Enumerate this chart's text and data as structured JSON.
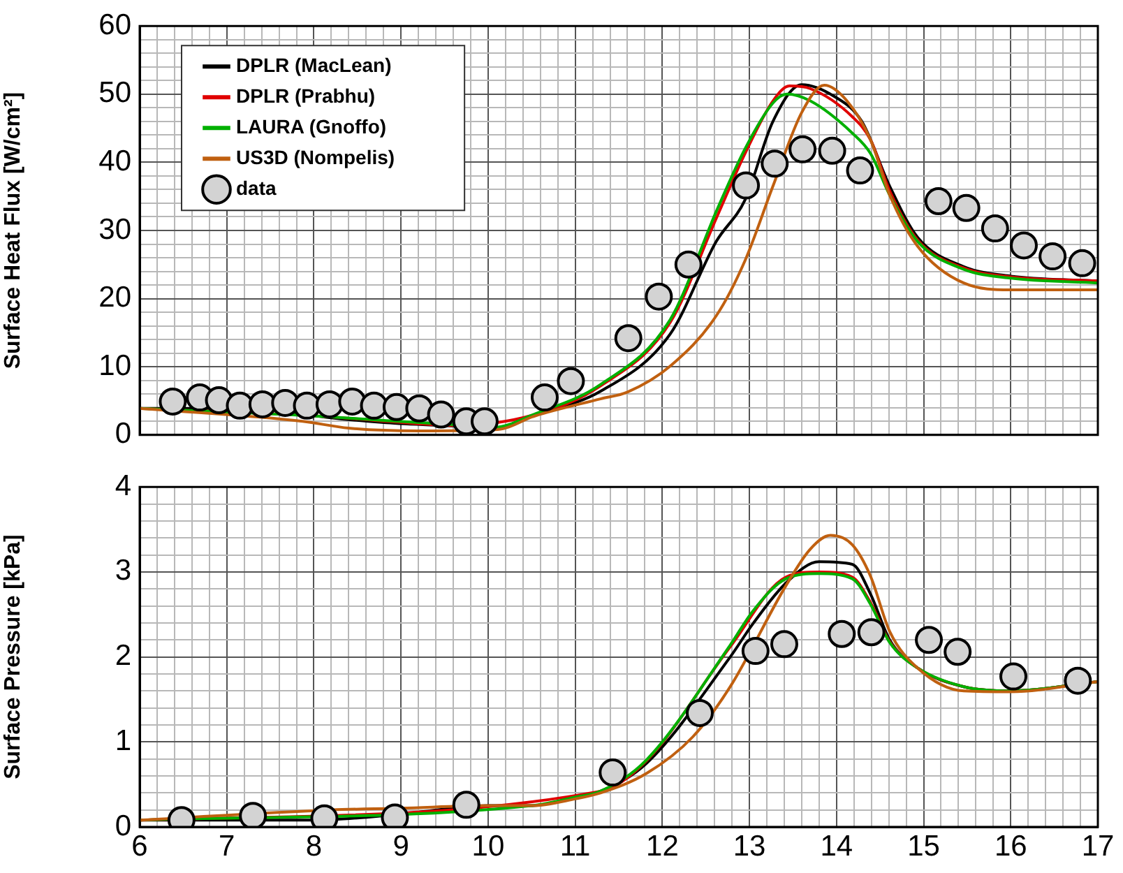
{
  "chart_data": [
    {
      "type": "line",
      "ylabel": "Surface Heat Flux [W/cm²]",
      "legend": "top left",
      "grid": true,
      "tick_labels": "y",
      "marker": "none",
      "xlim": [
        6,
        17
      ],
      "ylim": [
        0,
        60
      ],
      "xticks": [
        6,
        {
          "value": 6.2,
          "label": null
        },
        {
          "value": 6.4,
          "label": null
        },
        {
          "value": 6.6,
          "label": null
        },
        {
          "value": 6.8,
          "label": null
        },
        7,
        {
          "value": 7.2,
          "label": null
        },
        {
          "value": 7.4,
          "label": null
        },
        {
          "value": 7.6,
          "label": null
        },
        {
          "value": 7.8,
          "label": null
        },
        8,
        {
          "value": 8.2,
          "label": null
        },
        {
          "value": 8.4,
          "label": null
        },
        {
          "value": 8.6,
          "label": null
        },
        {
          "value": 8.8,
          "label": null
        },
        9,
        {
          "value": 9.2,
          "label": null
        },
        {
          "value": 9.4,
          "label": null
        },
        {
          "value": 9.6,
          "label": null
        },
        {
          "value": 9.8,
          "label": null
        },
        10,
        {
          "value": 10.2,
          "label": null
        },
        {
          "value": 10.4,
          "label": null
        },
        {
          "value": 10.6,
          "label": null
        },
        {
          "value": 10.8,
          "label": null
        },
        11,
        {
          "value": 11.2,
          "label": null
        },
        {
          "value": 11.4,
          "label": null
        },
        {
          "value": 11.6,
          "label": null
        },
        {
          "value": 11.8,
          "label": null
        },
        12,
        {
          "value": 12.2,
          "label": null
        },
        {
          "value": 12.4,
          "label": null
        },
        {
          "value": 12.6,
          "label": null
        },
        {
          "value": 12.8,
          "label": null
        },
        13,
        {
          "value": 13.2,
          "label": null
        },
        {
          "value": 13.4,
          "label": null
        },
        {
          "value": 13.6,
          "label": null
        },
        {
          "value": 13.8,
          "label": null
        },
        14,
        {
          "value": 14.2,
          "label": null
        },
        {
          "value": 14.4,
          "label": null
        },
        {
          "value": 14.6,
          "label": null
        },
        {
          "value": 14.8,
          "label": null
        },
        15,
        {
          "value": 15.2,
          "label": null
        },
        {
          "value": 15.4,
          "label": null
        },
        {
          "value": 15.6,
          "label": null
        },
        {
          "value": 15.8,
          "label": null
        },
        16,
        {
          "value": 16.2,
          "label": null
        },
        {
          "value": 16.4,
          "label": null
        },
        {
          "value": 16.6,
          "label": null
        },
        {
          "value": 16.8,
          "label": null
        },
        17
      ],
      "yticks": [
        0,
        {
          "value": 2,
          "label": null
        },
        {
          "value": 4,
          "label": null
        },
        {
          "value": 6,
          "label": null
        },
        {
          "value": 8,
          "label": null
        },
        10,
        {
          "value": 12,
          "label": null
        },
        {
          "value": 14,
          "label": null
        },
        {
          "value": 16,
          "label": null
        },
        {
          "value": 18,
          "label": null
        },
        20,
        {
          "value": 22,
          "label": null
        },
        {
          "value": 24,
          "label": null
        },
        {
          "value": 26,
          "label": null
        },
        {
          "value": 28,
          "label": null
        },
        30,
        {
          "value": 32,
          "label": null
        },
        {
          "value": 34,
          "label": null
        },
        {
          "value": 36,
          "label": null
        },
        {
          "value": 38,
          "label": null
        },
        40,
        {
          "value": 42,
          "label": null
        },
        {
          "value": 44,
          "label": null
        },
        {
          "value": 46,
          "label": null
        },
        {
          "value": 48,
          "label": null
        },
        50,
        {
          "value": 52,
          "label": null
        },
        {
          "value": 54,
          "label": null
        },
        {
          "value": 56,
          "label": null
        },
        {
          "value": 58,
          "label": null
        },
        60
      ],
      "series": [
        {
          "name": "DPLR (MacLean)",
          "type": "line",
          "color": "#000000",
          "x": [
            6,
            7,
            7.5,
            8.14,
            8.83,
            9.63,
            10.06,
            10.54,
            11.29,
            12.09,
            12.62,
            12.95,
            13.27,
            13.6,
            13.97,
            14.29,
            14.61,
            14.93,
            15.46,
            16,
            17
          ],
          "values": [
            3.9,
            3.9,
            3.7,
            2.6,
            1.8,
            1.3,
            1.0,
            3.0,
            6.4,
            14.8,
            28.4,
            34.5,
            46,
            51.4,
            49.7,
            46,
            36.5,
            29,
            24.7,
            23.3,
            22.6
          ]
        },
        {
          "name": "DPLR (Prabhu)",
          "type": "line",
          "color": "#e00000",
          "x": [
            6,
            8.14,
            8.83,
            9.63,
            10.54,
            11.29,
            12.09,
            12.62,
            12.95,
            13.27,
            13.46,
            13.7,
            14.18,
            14.39,
            14.61,
            14.93,
            15.46,
            16,
            17
          ],
          "values": [
            3.9,
            2.7,
            2.0,
            1.4,
            3.0,
            7.2,
            16.5,
            31.8,
            41.3,
            49,
            51.2,
            50.8,
            46.7,
            43.3,
            35.8,
            28.6,
            24.5,
            23.2,
            22.6
          ]
        },
        {
          "name": "LAURA (Gnoffo)",
          "type": "line",
          "color": "#00b000",
          "x": [
            6,
            8.14,
            8.83,
            9.63,
            10.06,
            10.54,
            11.29,
            12.09,
            12.62,
            12.95,
            13.27,
            13.43,
            13.7,
            14.18,
            14.39,
            14.61,
            14.93,
            15.46,
            16,
            17
          ],
          "values": [
            3.9,
            2.7,
            2.1,
            1.5,
            1.1,
            3.1,
            7.4,
            16.9,
            32.8,
            42,
            48.7,
            50,
            49,
            44.3,
            41.3,
            35.2,
            28.4,
            24.3,
            23,
            22.3
          ]
        },
        {
          "name": "US3D (Nompelis)",
          "type": "line",
          "color": "#c06010",
          "x": [
            6,
            7.87,
            8.4,
            9.2,
            10.11,
            10.54,
            11.29,
            11.6,
            12.09,
            12.62,
            12.95,
            13.27,
            13.6,
            13.86,
            14.12,
            14.39,
            14.61,
            14.93,
            15.46,
            16,
            17
          ],
          "values": [
            3.9,
            2.0,
            1.0,
            0.6,
            0.8,
            2.8,
            5.3,
            6.3,
            10.1,
            17.5,
            25.6,
            36.5,
            47.3,
            51.3,
            49,
            43.3,
            35.2,
            27.7,
            22.3,
            21.3,
            21.3
          ]
        },
        {
          "name": "data",
          "type": "scatter",
          "marker": "circle",
          "color": "#d3d3d3",
          "x": [
            6.38,
            6.69,
            6.91,
            7.15,
            7.41,
            7.67,
            7.92,
            8.18,
            8.44,
            8.69,
            8.95,
            9.21,
            9.46,
            9.75,
            9.96,
            10.65,
            10.95,
            11.61,
            11.96,
            12.3,
            12.96,
            13.29,
            13.61,
            13.95,
            14.27,
            15.17,
            15.49,
            15.82,
            16.15,
            16.48,
            16.82
          ],
          "values": [
            4.9,
            5.5,
            5.1,
            4.3,
            4.5,
            4.7,
            4.3,
            4.5,
            4.9,
            4.3,
            4.1,
            3.9,
            3.0,
            2.0,
            2.0,
            5.5,
            7.9,
            14.2,
            20.3,
            25.0,
            36.6,
            39.8,
            41.9,
            41.7,
            38.8,
            34.3,
            33.3,
            30.3,
            27.8,
            26.2,
            25.2
          ]
        }
      ]
    },
    {
      "type": "line",
      "ylabel": "Surface Pressure [kPa]",
      "grid": true,
      "marker": "none",
      "xlim": [
        6,
        17
      ],
      "ylim": [
        0,
        4
      ],
      "xticks": [
        6,
        {
          "value": 6.2,
          "label": null
        },
        {
          "value": 6.4,
          "label": null
        },
        {
          "value": 6.6,
          "label": null
        },
        {
          "value": 6.8,
          "label": null
        },
        7,
        {
          "value": 7.2,
          "label": null
        },
        {
          "value": 7.4,
          "label": null
        },
        {
          "value": 7.6,
          "label": null
        },
        {
          "value": 7.8,
          "label": null
        },
        8,
        {
          "value": 8.2,
          "label": null
        },
        {
          "value": 8.4,
          "label": null
        },
        {
          "value": 8.6,
          "label": null
        },
        {
          "value": 8.8,
          "label": null
        },
        9,
        {
          "value": 9.2,
          "label": null
        },
        {
          "value": 9.4,
          "label": null
        },
        {
          "value": 9.6,
          "label": null
        },
        {
          "value": 9.8,
          "label": null
        },
        10,
        {
          "value": 10.2,
          "label": null
        },
        {
          "value": 10.4,
          "label": null
        },
        {
          "value": 10.6,
          "label": null
        },
        {
          "value": 10.8,
          "label": null
        },
        11,
        {
          "value": 11.2,
          "label": null
        },
        {
          "value": 11.4,
          "label": null
        },
        {
          "value": 11.6,
          "label": null
        },
        {
          "value": 11.8,
          "label": null
        },
        12,
        {
          "value": 12.2,
          "label": null
        },
        {
          "value": 12.4,
          "label": null
        },
        {
          "value": 12.6,
          "label": null
        },
        {
          "value": 12.8,
          "label": null
        },
        13,
        {
          "value": 13.2,
          "label": null
        },
        {
          "value": 13.4,
          "label": null
        },
        {
          "value": 13.6,
          "label": null
        },
        {
          "value": 13.8,
          "label": null
        },
        14,
        {
          "value": 14.2,
          "label": null
        },
        {
          "value": 14.4,
          "label": null
        },
        {
          "value": 14.6,
          "label": null
        },
        {
          "value": 14.8,
          "label": null
        },
        15,
        {
          "value": 15.2,
          "label": null
        },
        {
          "value": 15.4,
          "label": null
        },
        {
          "value": 15.6,
          "label": null
        },
        {
          "value": 15.8,
          "label": null
        },
        16,
        {
          "value": 16.2,
          "label": null
        },
        {
          "value": 16.4,
          "label": null
        },
        {
          "value": 16.6,
          "label": null
        },
        {
          "value": 16.8,
          "label": null
        },
        17
      ],
      "yticks": [
        0,
        {
          "value": 0.2,
          "label": null
        },
        {
          "value": 0.4,
          "label": null
        },
        {
          "value": 0.6,
          "label": null
        },
        {
          "value": 0.8,
          "label": null
        },
        1,
        {
          "value": 1.2,
          "label": null
        },
        {
          "value": 1.4,
          "label": null
        },
        {
          "value": 1.6,
          "label": null
        },
        {
          "value": 1.8,
          "label": null
        },
        2,
        {
          "value": 2.2,
          "label": null
        },
        {
          "value": 2.4,
          "label": null
        },
        {
          "value": 2.6,
          "label": null
        },
        {
          "value": 2.8,
          "label": null
        },
        3,
        {
          "value": 3.2,
          "label": null
        },
        {
          "value": 3.4,
          "label": null
        },
        {
          "value": 3.6,
          "label": null
        },
        {
          "value": 3.8,
          "label": null
        },
        4
      ],
      "series": [
        {
          "type": "line",
          "color": "#000000",
          "x": [
            6,
            7,
            8,
            9,
            10,
            10.5,
            11,
            11.29,
            11.82,
            12.78,
            13.04,
            13.42,
            13.8,
            14.18,
            14.39,
            14.61,
            14.93,
            15.46,
            16,
            17
          ],
          "values": [
            0.08,
            0.08,
            0.08,
            0.15,
            0.25,
            0.25,
            0.35,
            0.42,
            0.75,
            2.0,
            2.39,
            2.87,
            3.12,
            3.09,
            2.74,
            2.2,
            1.87,
            1.65,
            1.6,
            1.71
          ]
        },
        {
          "type": "line",
          "color": "#e00000",
          "x": [
            6,
            11.29,
            11.82,
            12.78,
            13.42,
            13.8,
            14.18,
            14.39,
            14.61,
            14.93,
            15.46,
            16,
            17
          ],
          "values": [
            0.08,
            0.42,
            0.78,
            2.12,
            2.94,
            3.0,
            2.94,
            2.64,
            2.18,
            1.87,
            1.65,
            1.6,
            1.71
          ]
        },
        {
          "type": "line",
          "color": "#00b000",
          "x": [
            6,
            10.5,
            11,
            11.29,
            11.82,
            12.78,
            13.04,
            13.42,
            13.8,
            14.18,
            14.39,
            14.61,
            14.93,
            15.46,
            16,
            17
          ],
          "values": [
            0.08,
            0.25,
            0.35,
            0.42,
            0.79,
            2.14,
            2.54,
            2.92,
            2.98,
            2.92,
            2.62,
            2.17,
            1.87,
            1.65,
            1.6,
            1.71
          ]
        },
        {
          "type": "line",
          "color": "#c06010",
          "x": [
            6,
            8.2,
            9,
            10,
            10.5,
            11,
            11.29,
            11.82,
            12.35,
            12.78,
            13.42,
            13.7,
            13.93,
            14.18,
            14.39,
            14.61,
            14.93,
            15.46,
            16,
            17
          ],
          "values": [
            0.08,
            0.2,
            0.22,
            0.25,
            0.25,
            0.33,
            0.4,
            0.63,
            1.06,
            1.65,
            2.84,
            3.27,
            3.43,
            3.32,
            2.95,
            2.3,
            1.87,
            1.6,
            1.59,
            1.71
          ]
        },
        {
          "type": "scatter",
          "marker": "circle",
          "color": "#d3d3d3",
          "x": [
            6.48,
            7.3,
            8.12,
            8.93,
            9.75,
            11.43,
            12.43,
            13.07,
            13.4,
            14.06,
            14.4,
            15.06,
            15.39,
            16.03,
            16.77
          ],
          "values": [
            0.08,
            0.13,
            0.1,
            0.11,
            0.26,
            0.64,
            1.34,
            2.07,
            2.15,
            2.27,
            2.29,
            2.2,
            2.06,
            1.77,
            1.72
          ]
        }
      ]
    }
  ]
}
